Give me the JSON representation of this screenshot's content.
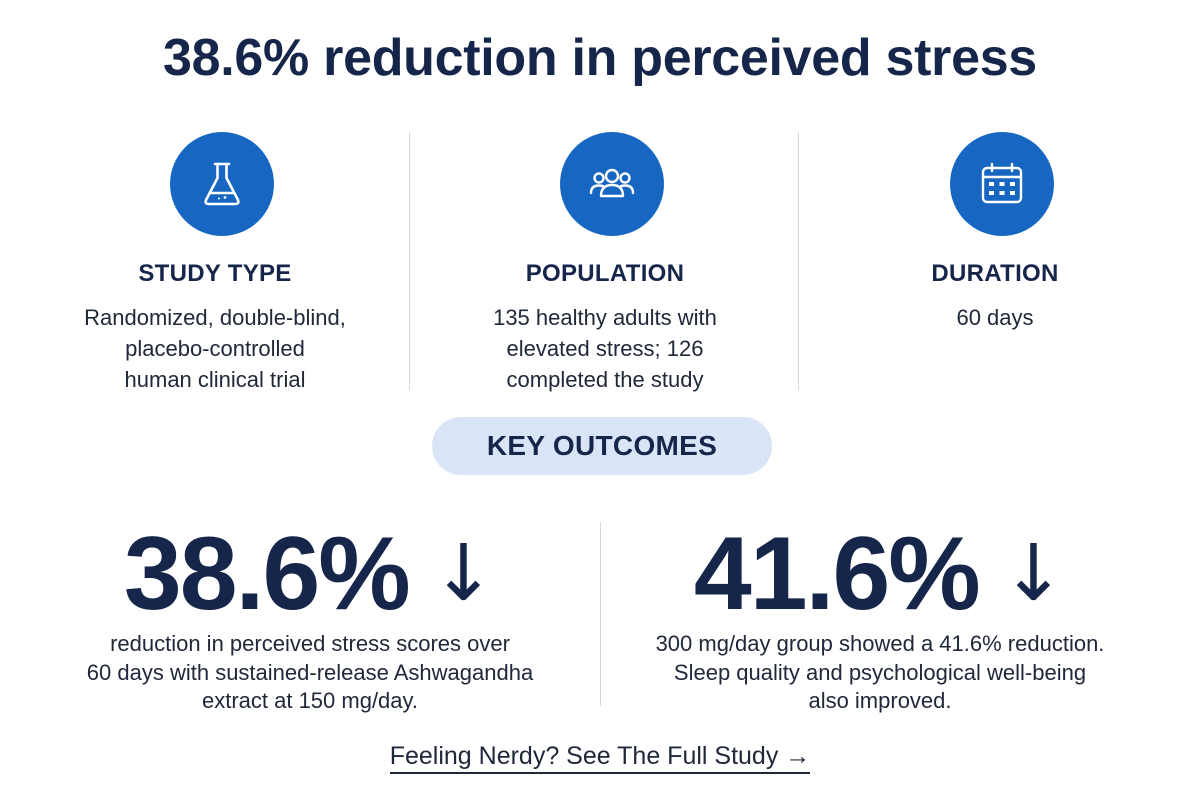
{
  "title": "38.6% reduction in perceived stress",
  "columns": [
    {
      "icon": "flask-icon",
      "heading": "STUDY TYPE",
      "body": "Randomized, double-blind,\nplacebo-controlled\nhuman clinical trial"
    },
    {
      "icon": "people-icon",
      "heading": "POPULATION",
      "body": "135 healthy adults with\nelevated stress; 126\ncompleted the study"
    },
    {
      "icon": "calendar-icon",
      "heading": "DURATION",
      "body": "60 days"
    }
  ],
  "outcomes_label": "KEY OUTCOMES",
  "stats": [
    {
      "value": "38.6%",
      "arrow": "↓",
      "desc": "reduction in perceived stress scores over\n60 days with sustained-release Ashwagandha\nextract at 150 mg/day."
    },
    {
      "value": "41.6%",
      "arrow": "↓",
      "desc": "300 mg/day group showed a 41.6% reduction.\nSleep quality and psychological well-being\nalso improved."
    }
  ],
  "link_text": "Feeling Nerdy? See The Full Study →",
  "colors": {
    "primary": "#16254a",
    "accent": "#1766c2",
    "pill": "#d9e5f6"
  }
}
